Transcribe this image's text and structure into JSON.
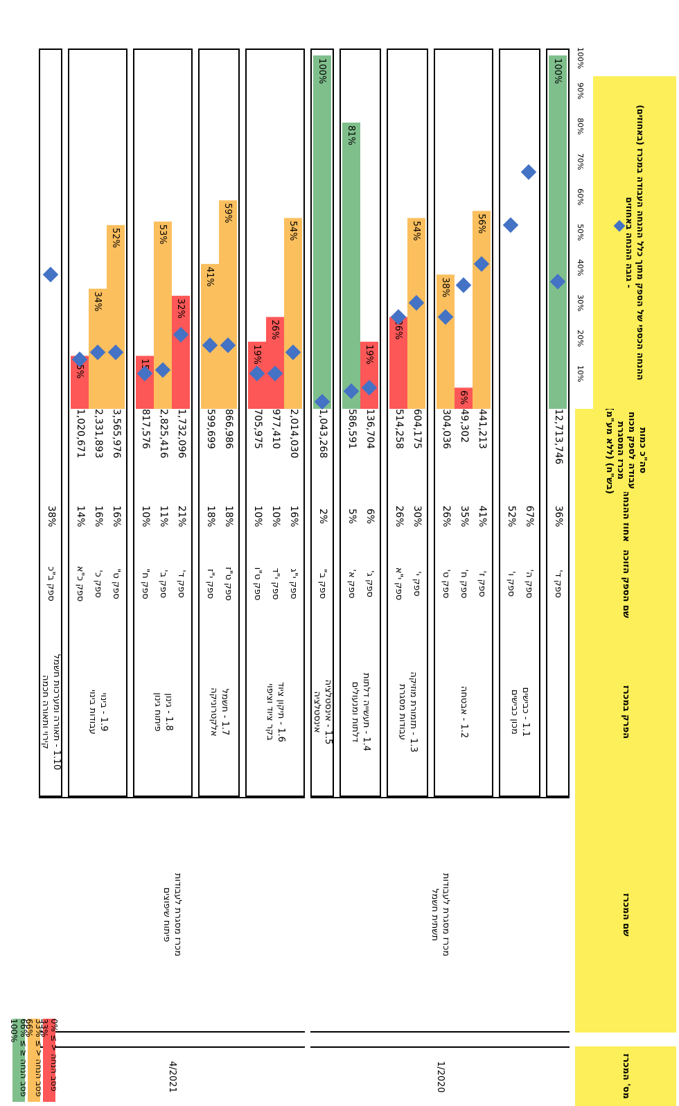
{
  "headers": {
    "plan_num": "מס' המכרז",
    "plan_name": "שם המכרז",
    "section": "הפרק במכרז",
    "template": "שם הספק הזוכה",
    "share": "אחוז ההנחה",
    "volume_lines": [
      "סה\"כ כמות",
      "עבודה לספק מכוח",
      "מכרז המסגרת",
      "(ללא מע\"מ) (בש\"ח)"
    ],
    "bar_title_lines": [
      "ההנחה הכספי של הספק מתוך כלל ההנחה העבודה במכרז (באחוזים)",
      "גובה ההנחה באחוזים - "
    ]
  },
  "tenders": [
    {
      "number": "1/2020",
      "name_lines": [
        "מכרז מסגרת לעבודות",
        "תשתית חשמל"
      ]
    },
    {
      "number": "4/2021",
      "name_lines": [
        "מכרז מסגרת לעבודות",
        "פיתוח שיפוצים"
      ]
    }
  ],
  "legend": [
    {
      "label": "0% ≤ פסב הנחה < 33%",
      "color": "#fe5757"
    },
    {
      "label": "33% ≤ פסב הנחה < 66%",
      "color": "#fbbf5e"
    },
    {
      "label": "66% ≤ פסב הנחה ≤ 100%",
      "color": "#7fbf8c"
    }
  ],
  "chart_data": {
    "type": "bar",
    "orientation": "horizontal",
    "title": "",
    "x_axis": {
      "ticks": [
        "100%",
        "90%",
        "80%",
        "70%",
        "60%",
        "50%",
        "40%",
        "30%",
        "20%",
        "10%"
      ],
      "range": [
        0,
        100
      ],
      "direction": "right-to-left"
    },
    "colors": {
      "low": "#fe5757",
      "mid": "#fbbf5e",
      "high": "#7fbf8c",
      "marker": "#4472c4"
    },
    "groups": [
      {
        "tender": "1/2020",
        "section_lines": [
          ""
        ],
        "rows": [
          {
            "supplier": "ספק ד'",
            "share": "36%",
            "volume": "12,713,746",
            "bar": 100,
            "bar_label": "100%",
            "marker": 36
          }
        ]
      },
      {
        "tender": "1/2020",
        "section_lines": [
          "1.1 - כבישים",
          "מכון כבישים"
        ],
        "rows": [
          {
            "supplier": "ספק ה'",
            "share": "67%",
            "volume": "",
            "bar": null,
            "bar_label": "",
            "marker": 67
          },
          {
            "supplier": "ספק ו'",
            "share": "52%",
            "volume": "",
            "bar": null,
            "bar_label": "",
            "marker": 52
          }
        ]
      },
      {
        "tender": "1/2020",
        "section_lines": [
          "1.2 - אבטחה"
        ],
        "rows": [
          {
            "supplier": "ספק ז'",
            "share": "41%",
            "volume": "441,213",
            "bar": 56,
            "bar_label": "56%",
            "marker": 41
          },
          {
            "supplier": "ספק ח'",
            "share": "35%",
            "volume": "49,302",
            "bar": 6,
            "bar_label": "6%",
            "marker": 35
          },
          {
            "supplier": "ספק ט'",
            "share": "26%",
            "volume": "304,036",
            "bar": 38,
            "bar_label": "38%",
            "marker": 26
          }
        ]
      },
      {
        "tender": "1/2020",
        "section_lines": [
          "1.3 - תזמורת מוזיקה",
          "עבודות מסגרת"
        ],
        "rows": [
          {
            "supplier": "ספק י'",
            "share": "30%",
            "volume": "604,175",
            "bar": 54,
            "bar_label": "54%",
            "marker": 30
          },
          {
            "supplier": "ספק י\"א",
            "share": "26%",
            "volume": "514,258",
            "bar": 26,
            "bar_label": "26%",
            "marker": 26
          }
        ]
      },
      {
        "tender": "1/2020",
        "section_lines": [
          "1.4 - תעשייה דלתות",
          "דלתות ומנעולים"
        ],
        "rows": [
          {
            "supplier": "ספק ג'",
            "share": "6%",
            "volume": "136,704",
            "bar": 19,
            "bar_label": "19%",
            "marker": 6
          },
          {
            "supplier": "ספק א'",
            "share": "5%",
            "volume": "586,591",
            "bar": 81,
            "bar_label": "81%",
            "marker": 5
          }
        ]
      },
      {
        "tender": "1/2020",
        "section_lines": [
          "1.5 - אינסטלציה",
          "אינסטלציה"
        ],
        "rows": [
          {
            "supplier": "ספק ב\"",
            "share": "2%",
            "volume": "1,043,268",
            "bar": 100,
            "bar_label": "100%",
            "marker": 2
          }
        ]
      },
      {
        "tender": "4/2021",
        "section_lines": [
          "1.6 - תיקון ציוד",
          "בקר ציוד וציפוי"
        ],
        "rows": [
          {
            "supplier": "ספק י\"ג",
            "share": "16%",
            "volume": "2,014,030",
            "bar": 54,
            "bar_label": "54%",
            "marker": 16
          },
          {
            "supplier": "ספק י\"ד",
            "share": "10%",
            "volume": "977,410",
            "bar": 26,
            "bar_label": "26%",
            "marker": 10
          },
          {
            "supplier": "ספק ט\"ו",
            "share": "10%",
            "volume": "705,975",
            "bar": 19,
            "bar_label": "19%",
            "marker": 10
          }
        ]
      },
      {
        "tender": "4/2021",
        "section_lines": [
          "1.7 - חשמל",
          "אלקטרוניקה"
        ],
        "rows": [
          {
            "supplier": "ספק ט\"ז",
            "share": "18%",
            "volume": "866,986",
            "bar": 59,
            "bar_label": "59%",
            "marker": 18
          },
          {
            "supplier": "ספק י\"ז",
            "share": "18%",
            "volume": "599,699",
            "bar": 41,
            "bar_label": "41%",
            "marker": 18
          }
        ]
      },
      {
        "tender": "4/2021",
        "section_lines": [
          "1.8 - גינון",
          "פיתוח גינון"
        ],
        "rows": [
          {
            "supplier": "ספק ד'",
            "share": "21%",
            "volume": "1,732,096",
            "bar": 32,
            "bar_label": "32%",
            "marker": 21
          },
          {
            "supplier": "ספק ב'",
            "share": "11%",
            "volume": "2,825,416",
            "bar": 53,
            "bar_label": "53%",
            "marker": 11
          },
          {
            "supplier": "ספק ח\"",
            "share": "10%",
            "volume": "817,576",
            "bar": 15,
            "bar_label": "15%",
            "marker": 10
          }
        ]
      },
      {
        "tender": "4/2021",
        "section_lines": [
          "1.9 - בינוי",
          "עבודות בינוי"
        ],
        "rows": [
          {
            "supplier": "ספק ט\"",
            "share": "16%",
            "volume": "3,565,976",
            "bar": 52,
            "bar_label": "52%",
            "marker": 16
          },
          {
            "supplier": "ספק כ'",
            "share": "16%",
            "volume": "2,331,893",
            "bar": 34,
            "bar_label": "34%",
            "marker": 16
          },
          {
            "supplier": "ספק כ\"א",
            "share": "14%",
            "volume": "1,020,671",
            "bar": 15,
            "bar_label": "15%",
            "marker": 14
          }
        ]
      },
      {
        "tender": "4/2021",
        "section_lines": [
          "1.10 - תאורה ומערכות חשמל",
          "קירוי ותאורה חכמה"
        ],
        "rows": [
          {
            "supplier": "ספק ב\"כ",
            "share": "38%",
            "volume": "",
            "bar": null,
            "bar_label": "",
            "marker": 38
          }
        ]
      }
    ]
  }
}
